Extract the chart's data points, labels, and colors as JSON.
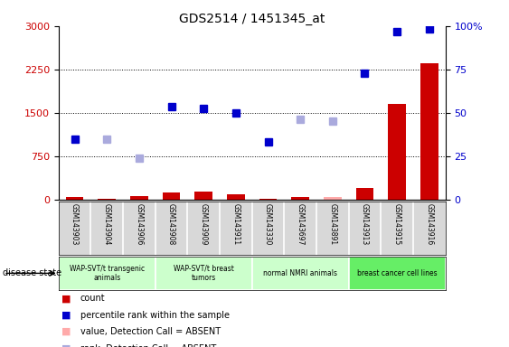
{
  "title": "GDS2514 / 1451345_at",
  "samples": [
    "GSM143903",
    "GSM143904",
    "GSM143906",
    "GSM143908",
    "GSM143909",
    "GSM143911",
    "GSM143330",
    "GSM143697",
    "GSM143891",
    "GSM143913",
    "GSM143915",
    "GSM143916"
  ],
  "count_values": [
    40,
    10,
    60,
    120,
    130,
    90,
    10,
    40,
    50,
    200,
    1650,
    2350
  ],
  "count_absent": [
    false,
    false,
    false,
    false,
    false,
    false,
    false,
    false,
    true,
    false,
    false,
    false
  ],
  "rank_values": [
    1050,
    1050,
    720,
    1600,
    1570,
    1500,
    1000,
    1380,
    1360,
    2190,
    2900,
    2950
  ],
  "rank_absent": [
    false,
    true,
    true,
    false,
    false,
    false,
    false,
    true,
    true,
    false,
    false,
    false
  ],
  "left_ylim": [
    0,
    3000
  ],
  "right_ylim": [
    0,
    100
  ],
  "left_yticks": [
    0,
    750,
    1500,
    2250,
    3000
  ],
  "right_yticks": [
    0,
    25,
    50,
    75,
    100
  ],
  "left_color": "#cc0000",
  "right_color": "#0000cc",
  "groups": [
    {
      "label": "WAP-SVT/t transgenic\nanimals",
      "start": 0,
      "end": 3,
      "color": "#ccffcc"
    },
    {
      "label": "WAP-SVT/t breast\ntumors",
      "start": 3,
      "end": 6,
      "color": "#ccffcc"
    },
    {
      "label": "normal NMRI animals",
      "start": 6,
      "end": 9,
      "color": "#ccffcc"
    },
    {
      "label": "breast cancer cell lines",
      "start": 9,
      "end": 12,
      "color": "#66ee66"
    }
  ],
  "group_colors": [
    "#ccffcc",
    "#ccffcc",
    "#ccffcc",
    "#66ee66"
  ],
  "legend_items": [
    {
      "label": "count",
      "color": "#cc0000"
    },
    {
      "label": "percentile rank within the sample",
      "color": "#0000cc"
    },
    {
      "label": "value, Detection Call = ABSENT",
      "color": "#ffaaaa"
    },
    {
      "label": "rank, Detection Call = ABSENT",
      "color": "#aaaadd"
    }
  ]
}
